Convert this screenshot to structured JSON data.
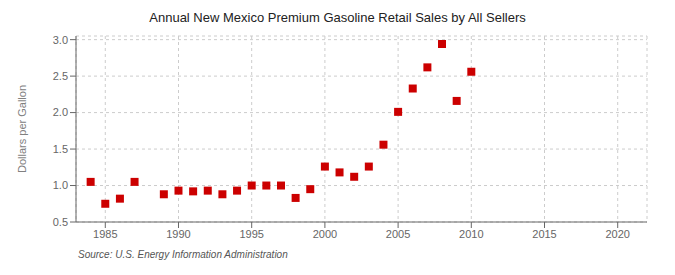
{
  "chart_data": {
    "type": "scatter",
    "title": "Annual New Mexico Premium Gasoline Retail Sales by All Sellers",
    "ylabel": "Dollars per Gallon",
    "annotations": [
      "Source: U.S. Energy Information Administration"
    ],
    "x": [
      1984,
      1985,
      1986,
      1987,
      1989,
      1990,
      1991,
      1992,
      1993,
      1994,
      1995,
      1996,
      1997,
      1998,
      1999,
      2000,
      2001,
      2002,
      2003,
      2004,
      2005,
      2006,
      2007,
      2008,
      2009,
      2010
    ],
    "values": [
      1.05,
      0.75,
      0.82,
      1.05,
      0.88,
      0.93,
      0.92,
      0.93,
      0.88,
      0.93,
      1.0,
      1.0,
      1.0,
      0.83,
      0.95,
      1.26,
      1.18,
      1.12,
      1.26,
      1.56,
      2.01,
      2.33,
      2.62,
      2.94,
      2.16,
      2.56
    ],
    "color": "#cc0000",
    "marker": "square",
    "xlim": [
      1983,
      2022
    ],
    "xticks": [
      1985,
      1990,
      1995,
      2000,
      2005,
      2010,
      2015,
      2020
    ],
    "ylim": [
      0.5,
      3.05
    ],
    "yticks": [
      0.5,
      {
        "value": 1.0,
        "label": "1.0"
      },
      1.5,
      {
        "value": 2.0,
        "label": "2.0"
      },
      2.5,
      {
        "value": 3.0,
        "label": "3.0"
      }
    ],
    "grid": true
  }
}
